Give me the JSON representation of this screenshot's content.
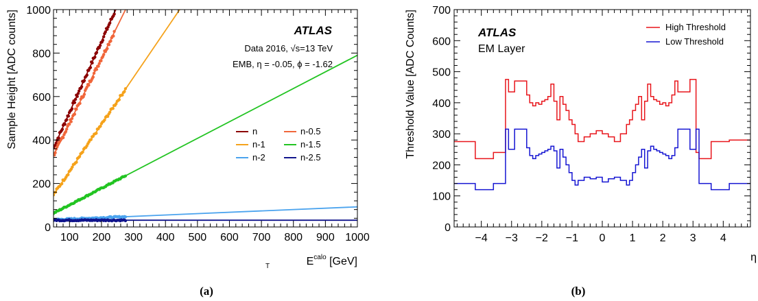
{
  "chart_data": [
    {
      "panel": "a",
      "caption": "(a)",
      "type": "scatter",
      "xlabel_main": "E",
      "xlabel_sub": "T",
      "xlabel_sup": "calo",
      "xlabel_unit": " [GeV]",
      "ylabel": "Sample Height [ADC counts]",
      "xlim": [
        50,
        1000
      ],
      "ylim": [
        0,
        1000
      ],
      "xticks": [
        100,
        200,
        300,
        400,
        500,
        600,
        700,
        800,
        900,
        1000
      ],
      "yticks": [
        0,
        200,
        400,
        600,
        800,
        1000
      ],
      "atlas_label": "ATLAS",
      "info_line1": "Data 2016, √s=13 TeV",
      "info_line2": "EMB, η = -0.05, ϕ = -1.62",
      "legend_position": "right-middle",
      "series": [
        {
          "name": "n",
          "color": "#8b0000",
          "slope": 3.27,
          "intercept": 200,
          "data_range": [
            50,
            240
          ]
        },
        {
          "name": "n-0.5",
          "color": "#f0663a",
          "slope": 2.98,
          "intercept": 180,
          "data_range": [
            50,
            240
          ]
        },
        {
          "name": "n-1",
          "color": "#f5a21b",
          "slope": 2.16,
          "intercept": 40,
          "data_range": [
            50,
            275
          ]
        },
        {
          "name": "n-1.5",
          "color": "#22c422",
          "slope": 0.765,
          "intercept": 25,
          "data_range": [
            50,
            275
          ]
        },
        {
          "name": "n-2",
          "color": "#4aa3ee",
          "slope": 0.0625,
          "intercept": 30,
          "data_range": [
            50,
            275
          ]
        },
        {
          "name": "n-2.5",
          "color": "#10148c",
          "slope": 0,
          "intercept": 31,
          "data_range": [
            50,
            275
          ]
        }
      ]
    },
    {
      "panel": "b",
      "caption": "(b)",
      "type": "step",
      "xlabel": "η",
      "ylabel": "Threshold Value [ADC Counts]",
      "xlim": [
        -4.9,
        4.9
      ],
      "ylim": [
        0,
        700
      ],
      "xticks": [
        -4,
        -3,
        -2,
        -1,
        0,
        1,
        2,
        3,
        4
      ],
      "yticks": [
        0,
        100,
        200,
        300,
        400,
        500,
        600,
        700
      ],
      "atlas_label": "ATLAS",
      "sublabel": "EM Layer",
      "legend_position": "top-right",
      "series": [
        {
          "name": "High Threshold",
          "color": "#e8141a",
          "edges": [
            -4.9,
            -4.2,
            -3.6,
            -3.2,
            -3.1,
            -2.9,
            -2.5,
            -2.4,
            -2.3,
            -2.2,
            -2.1,
            -2.0,
            -1.9,
            -1.8,
            -1.7,
            -1.6,
            -1.5,
            -1.4,
            -1.3,
            -1.2,
            -1.1,
            -1.0,
            -0.9,
            -0.8,
            -0.6,
            -0.4,
            -0.2,
            0.0,
            0.2,
            0.4,
            0.6,
            0.8,
            0.9,
            1.0,
            1.1,
            1.2,
            1.3,
            1.4,
            1.5,
            1.6,
            1.7,
            1.8,
            1.9,
            2.0,
            2.1,
            2.2,
            2.3,
            2.4,
            2.5,
            2.9,
            3.1,
            3.2,
            3.6,
            4.2,
            4.9
          ],
          "values": [
            275,
            220,
            240,
            475,
            435,
            470,
            425,
            400,
            390,
            400,
            395,
            405,
            410,
            420,
            460,
            405,
            345,
            420,
            395,
            375,
            345,
            330,
            300,
            275,
            290,
            300,
            310,
            300,
            290,
            275,
            300,
            330,
            345,
            375,
            395,
            420,
            345,
            405,
            460,
            420,
            410,
            405,
            395,
            400,
            390,
            400,
            425,
            470,
            435,
            475,
            240,
            220,
            275,
            280
          ]
        },
        {
          "name": "Low Threshold",
          "color": "#1414d2",
          "edges": [
            -4.9,
            -4.2,
            -3.6,
            -3.2,
            -3.1,
            -2.9,
            -2.5,
            -2.4,
            -2.3,
            -2.2,
            -2.1,
            -2.0,
            -1.9,
            -1.8,
            -1.7,
            -1.6,
            -1.5,
            -1.4,
            -1.3,
            -1.2,
            -1.1,
            -1.0,
            -0.9,
            -0.8,
            -0.6,
            -0.4,
            -0.2,
            0.0,
            0.2,
            0.4,
            0.6,
            0.8,
            0.9,
            1.0,
            1.1,
            1.2,
            1.3,
            1.4,
            1.5,
            1.6,
            1.7,
            1.8,
            1.9,
            2.0,
            2.1,
            2.2,
            2.3,
            2.4,
            2.5,
            2.9,
            3.1,
            3.2,
            3.6,
            4.2,
            4.9
          ],
          "values": [
            140,
            120,
            140,
            315,
            250,
            315,
            255,
            230,
            220,
            230,
            235,
            240,
            245,
            250,
            260,
            245,
            190,
            250,
            225,
            200,
            175,
            150,
            135,
            150,
            160,
            155,
            160,
            145,
            155,
            160,
            150,
            135,
            150,
            175,
            200,
            225,
            250,
            190,
            245,
            260,
            250,
            245,
            240,
            235,
            230,
            220,
            230,
            255,
            315,
            250,
            315,
            140,
            120,
            140
          ]
        }
      ]
    }
  ]
}
